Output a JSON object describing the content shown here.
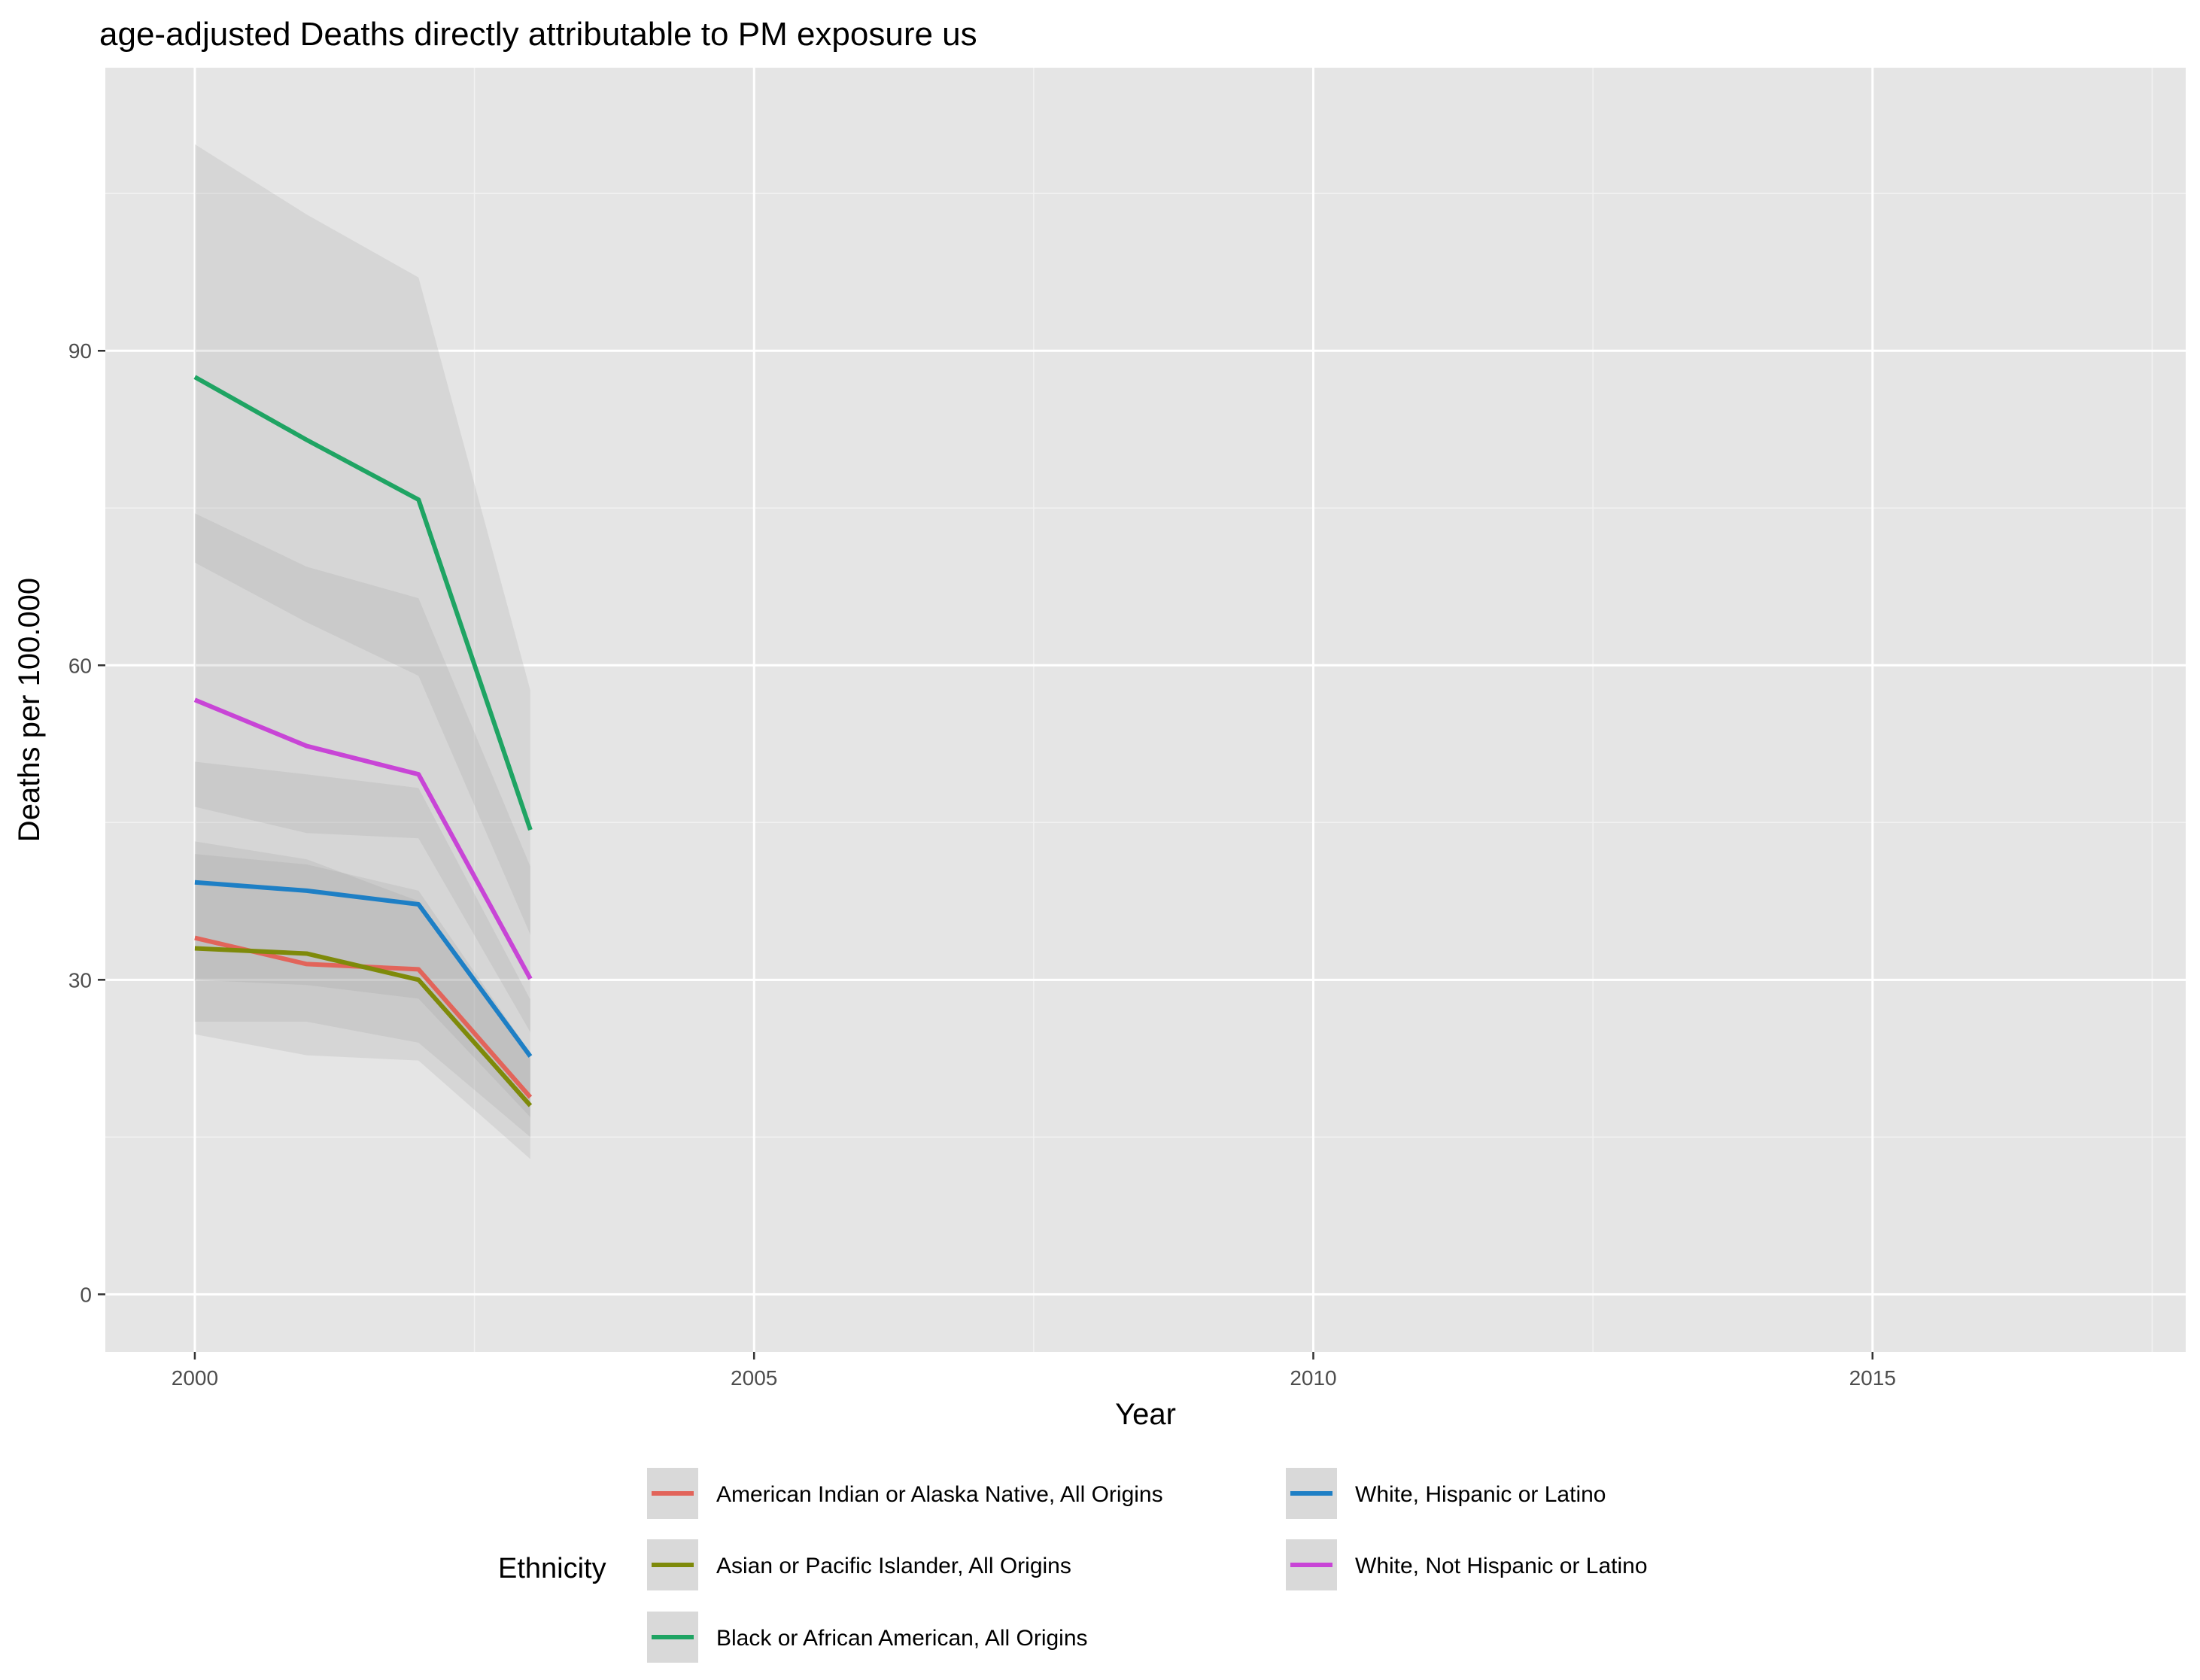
{
  "chart_data": {
    "type": "line",
    "title": "age-adjusted Deaths directly attributable to PM exposure us",
    "xlabel": "Year",
    "ylabel": "Deaths per 100.000",
    "xlim": [
      1999.2,
      2017.8
    ],
    "ylim": [
      -5.5,
      117
    ],
    "x_ticks": [
      2000,
      2005,
      2010,
      2015
    ],
    "y_ticks": [
      0,
      30,
      60,
      90
    ],
    "grid": true,
    "confidence_bands": true,
    "legend": {
      "title": "Ethnicity",
      "placement": "bottom"
    },
    "x": [
      2000,
      2001,
      2002,
      2003
    ],
    "series": [
      {
        "name": "American Indian or Alaska Native, All Origins",
        "color": "#E2645A",
        "values": [
          34.0,
          31.5,
          31.0,
          18.8
        ],
        "lower": [
          26.0,
          26.0,
          24.0,
          15.0
        ],
        "upper": [
          42.0,
          41.0,
          38.5,
          23.0
        ]
      },
      {
        "name": "Asian or Pacific Islander, All Origins",
        "color": "#7E8A0A",
        "values": [
          33.0,
          32.5,
          30.0,
          18.0
        ],
        "lower": [
          24.8,
          22.8,
          22.3,
          12.9
        ],
        "upper": [
          43.2,
          41.5,
          37.5,
          22.5
        ]
      },
      {
        "name": "Black or African American, All Origins",
        "color": "#1FA463",
        "values": [
          87.5,
          81.5,
          75.8,
          44.3
        ],
        "lower": [
          69.8,
          64.1,
          59.0,
          34.3
        ],
        "upper": [
          109.7,
          103.0,
          97.0,
          57.6
        ]
      },
      {
        "name": "White, Hispanic or Latino",
        "color": "#1E7FC5",
        "values": [
          39.3,
          38.5,
          37.2,
          22.7
        ],
        "lower": [
          30.0,
          29.5,
          28.2,
          16.9
        ],
        "upper": [
          50.8,
          49.6,
          48.3,
          28.1
        ]
      },
      {
        "name": "White, Not Hispanic or Latino",
        "color": "#C845D6",
        "values": [
          56.7,
          52.3,
          49.6,
          30.1
        ],
        "lower": [
          46.5,
          44.0,
          43.5,
          25.0
        ],
        "upper": [
          74.5,
          69.4,
          66.4,
          40.8
        ]
      }
    ],
    "legend_order": [
      0,
      1,
      2,
      3,
      4
    ]
  }
}
